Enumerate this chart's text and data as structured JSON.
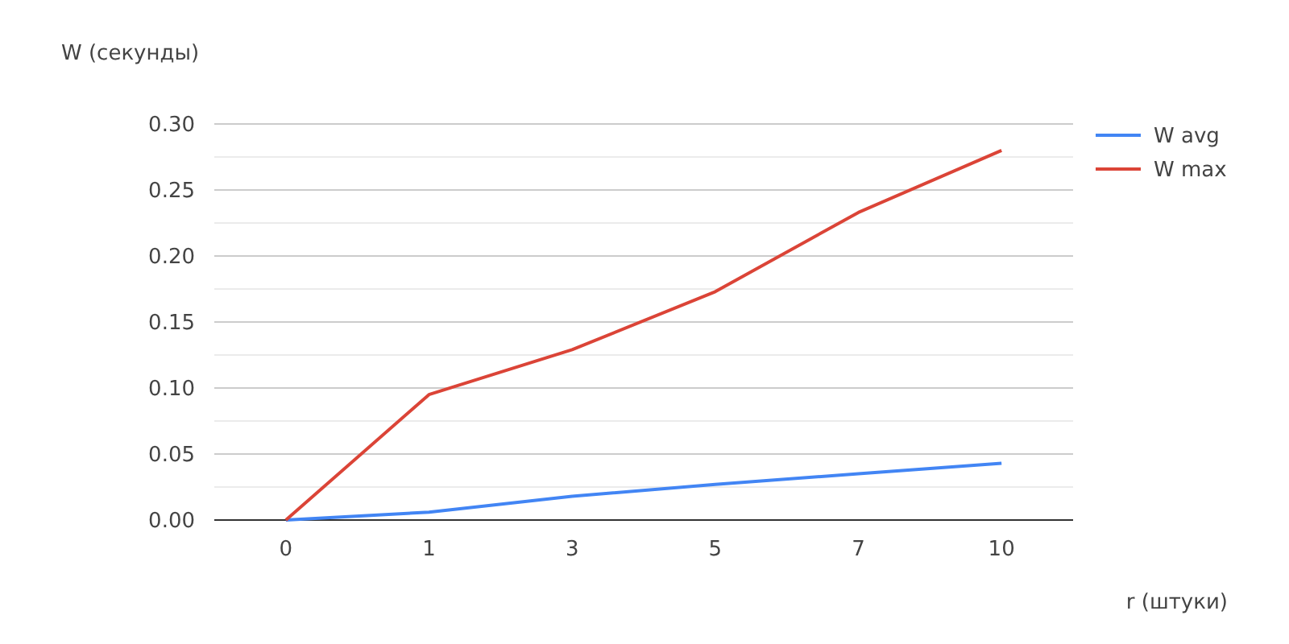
{
  "chart_data": {
    "type": "line",
    "xlabel": "r (штуки)",
    "ylabel": "W (секунды)",
    "categories": [
      "0",
      "1",
      "3",
      "5",
      "7",
      "10"
    ],
    "series": [
      {
        "name": "W avg",
        "color": "#4285f4",
        "values": [
          0,
          0.006,
          0.018,
          0.027,
          0.035,
          0.043
        ]
      },
      {
        "name": "W max",
        "color": "#db4437",
        "values": [
          0,
          0.095,
          0.129,
          0.173,
          0.233,
          0.28
        ]
      }
    ],
    "ylim": [
      0,
      0.3
    ],
    "yticks": [
      {
        "value": 0,
        "label": "0.00"
      },
      {
        "value": 0.025,
        "label": null
      },
      {
        "value": 0.05,
        "label": "0.05"
      },
      {
        "value": 0.075,
        "label": null
      },
      {
        "value": 0.1,
        "label": "0.10"
      },
      {
        "value": 0.125,
        "label": null
      },
      {
        "value": 0.15,
        "label": "0.15"
      },
      {
        "value": 0.175,
        "label": null
      },
      {
        "value": 0.2,
        "label": "0.20"
      },
      {
        "value": 0.225,
        "label": null
      },
      {
        "value": 0.25,
        "label": "0.25"
      },
      {
        "value": 0.275,
        "label": null
      },
      {
        "value": 0.3,
        "label": "0.30"
      }
    ],
    "grid": true,
    "legend": "right",
    "marker": "none",
    "line_style": "solid"
  }
}
